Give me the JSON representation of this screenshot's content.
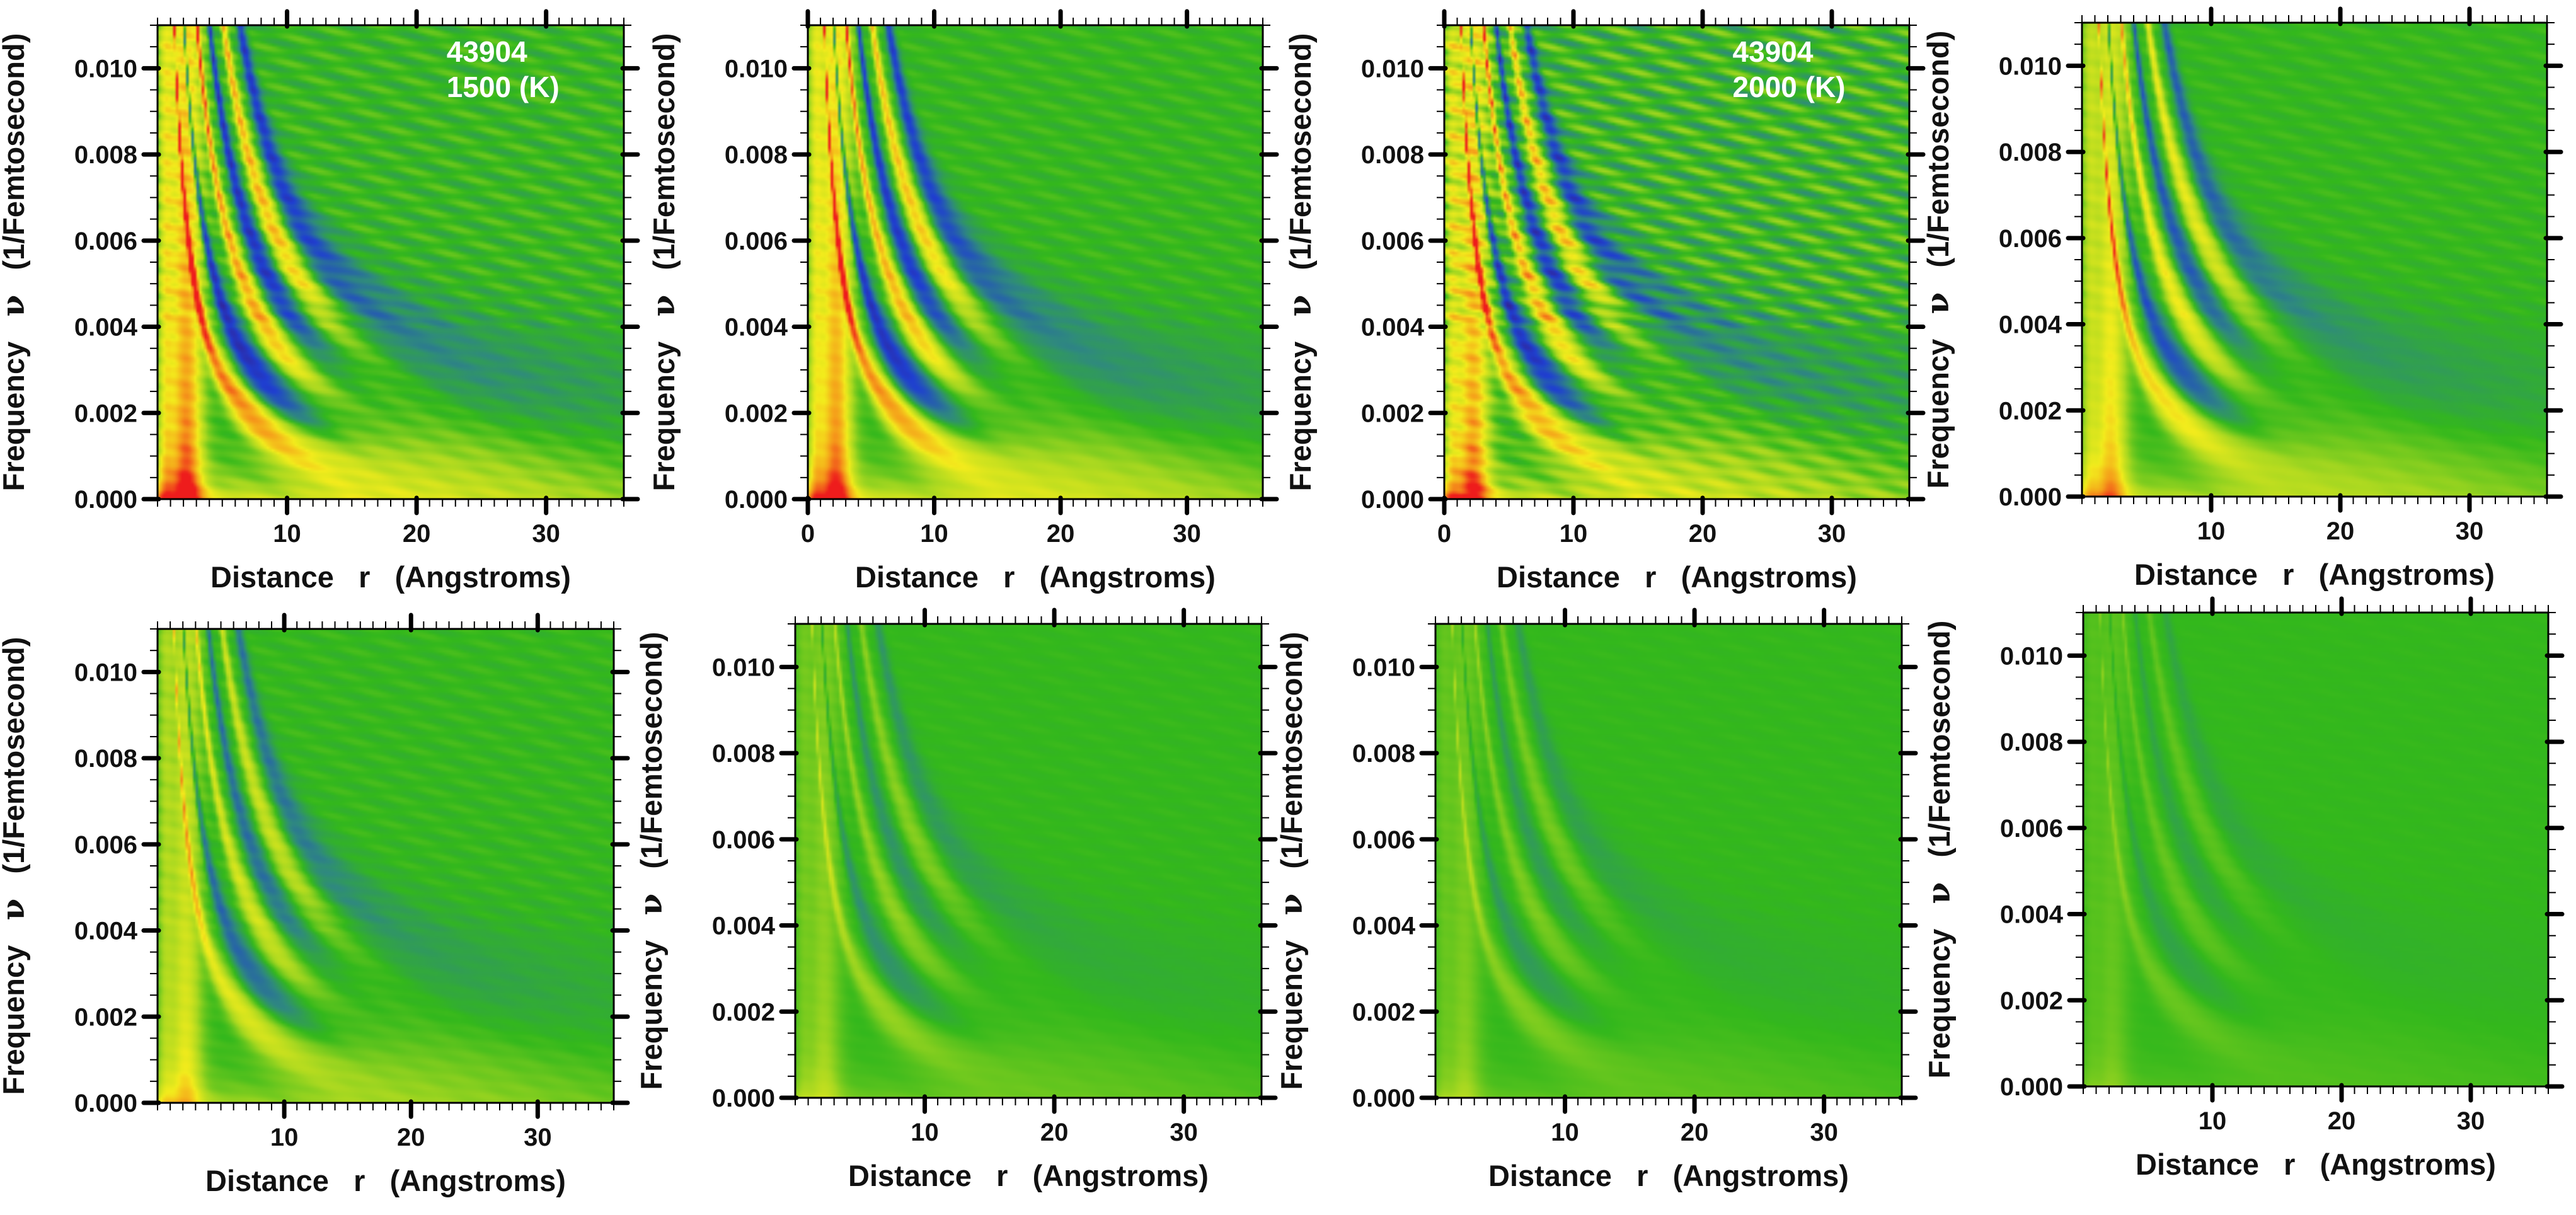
{
  "figure": {
    "description_type": "grid of 8 false-colour frequency-distance contour maps"
  },
  "colormap": {
    "stops": [
      {
        "v": -1.0,
        "color": "#3a1a82"
      },
      {
        "v": -0.6,
        "color": "#1f3fd1"
      },
      {
        "v": -0.25,
        "color": "#2f8a7e"
      },
      {
        "v": 0.0,
        "color": "#33b81c"
      },
      {
        "v": 0.25,
        "color": "#a8d820"
      },
      {
        "v": 0.5,
        "color": "#f3ec1c"
      },
      {
        "v": 0.75,
        "color": "#f59a1a"
      },
      {
        "v": 1.0,
        "color": "#ee1c1c"
      }
    ]
  },
  "chart_data": [
    {
      "id": "p1",
      "type": "heatmap",
      "xlabel": "Distance   r   (Angstroms)",
      "ylabel_prefix": "Frequency",
      "ylabel_symbol": "ν",
      "ylabel_unit": "(1/Femtosecond)",
      "xlim": [
        0,
        36
      ],
      "ylim": [
        0,
        0.011
      ],
      "xticks": [
        10,
        20,
        30
      ],
      "yticks": [
        0.0,
        0.002,
        0.004,
        0.006,
        0.008,
        0.01
      ],
      "ytick_labels": [
        "0.000",
        "0.002",
        "0.004",
        "0.006",
        "0.008",
        "0.010"
      ],
      "annotation": [
        "43904",
        "1500 (K)"
      ],
      "intensity": 1.0,
      "noise": 0.35,
      "colorscale": "value -1 (dark blue/purple) to +1 (red), green = 0",
      "ridges": [
        {
          "sign": 1,
          "coef": 0.0143
        },
        {
          "sign": -1,
          "coef": 0.0225
        },
        {
          "sign": 1,
          "coef": 0.0335
        },
        {
          "sign": -1,
          "coef": 0.044
        },
        {
          "sign": 1,
          "coef": 0.056
        },
        {
          "sign": -1,
          "coef": 0.07
        }
      ]
    },
    {
      "id": "p2",
      "type": "heatmap",
      "xlabel": "Distance   r   (Angstroms)",
      "ylabel_prefix": "Frequency",
      "ylabel_symbol": "ν",
      "ylabel_unit": "(1/Femtosecond)",
      "xlim": [
        0,
        36
      ],
      "ylim": [
        0,
        0.011
      ],
      "xticks": [
        0,
        10,
        20,
        30
      ],
      "yticks": [
        0.0,
        0.002,
        0.004,
        0.006,
        0.008,
        0.01
      ],
      "ytick_labels": [
        "0.000",
        "0.002",
        "0.004",
        "0.006",
        "0.008",
        "0.010"
      ],
      "annotation": null,
      "intensity": 0.95,
      "noise": 0.2,
      "colorscale": "value -1 (dark blue/purple) to +1 (red), green = 0",
      "ridges": [
        {
          "sign": 1,
          "coef": 0.0143
        },
        {
          "sign": -1,
          "coef": 0.0225
        },
        {
          "sign": 1,
          "coef": 0.0335
        },
        {
          "sign": -1,
          "coef": 0.044
        },
        {
          "sign": 1,
          "coef": 0.056
        },
        {
          "sign": -1,
          "coef": 0.07
        }
      ]
    },
    {
      "id": "p3",
      "type": "heatmap",
      "xlabel": "Distance   r   (Angstroms)",
      "ylabel_prefix": "Frequency",
      "ylabel_symbol": "ν",
      "ylabel_unit": "(1/Femtosecond)",
      "xlim": [
        0,
        36
      ],
      "ylim": [
        0,
        0.011
      ],
      "xticks": [
        0,
        10,
        20,
        30
      ],
      "yticks": [
        0.0,
        0.002,
        0.004,
        0.006,
        0.008,
        0.01
      ],
      "ytick_labels": [
        "0.000",
        "0.002",
        "0.004",
        "0.006",
        "0.008",
        "0.010"
      ],
      "annotation": [
        "43904",
        "2000 (K)"
      ],
      "intensity": 0.9,
      "noise": 0.75,
      "colorscale": "value -1 (dark blue/purple) to +1 (red), green = 0",
      "ridges": [
        {
          "sign": 1,
          "coef": 0.0143
        },
        {
          "sign": -1,
          "coef": 0.0225
        },
        {
          "sign": 1,
          "coef": 0.0335
        },
        {
          "sign": -1,
          "coef": 0.044
        },
        {
          "sign": 1,
          "coef": 0.056
        },
        {
          "sign": -1,
          "coef": 0.07
        }
      ]
    },
    {
      "id": "p4",
      "type": "heatmap",
      "xlabel": "Distance   r   (Angstroms)",
      "ylabel_prefix": "Frequency",
      "ylabel_symbol": "ν",
      "ylabel_unit": "(1/Femtosecond)",
      "xlim": [
        0,
        36
      ],
      "ylim": [
        0,
        0.011
      ],
      "xticks": [
        10,
        20,
        30
      ],
      "yticks": [
        0.0,
        0.002,
        0.004,
        0.006,
        0.008,
        0.01
      ],
      "ytick_labels": [
        "0.000",
        "0.002",
        "0.004",
        "0.006",
        "0.008",
        "0.010"
      ],
      "annotation": null,
      "intensity": 0.7,
      "noise": 0.2,
      "colorscale": "value -1 (dark blue/purple) to +1 (red), green = 0",
      "ridges": [
        {
          "sign": 1,
          "coef": 0.0143
        },
        {
          "sign": -1,
          "coef": 0.0225
        },
        {
          "sign": 1,
          "coef": 0.0335
        },
        {
          "sign": -1,
          "coef": 0.044
        },
        {
          "sign": 1,
          "coef": 0.056
        },
        {
          "sign": -1,
          "coef": 0.07
        }
      ]
    },
    {
      "id": "p5",
      "type": "heatmap",
      "xlabel": "Distance   r   (Angstroms)",
      "ylabel_prefix": "Frequency",
      "ylabel_symbol": "ν",
      "ylabel_unit": "(1/Femtosecond)",
      "xlim": [
        0,
        36
      ],
      "ylim": [
        0,
        0.011
      ],
      "xticks": [
        10,
        20,
        30
      ],
      "yticks": [
        0.0,
        0.002,
        0.004,
        0.006,
        0.008,
        0.01
      ],
      "ytick_labels": [
        "0.000",
        "0.002",
        "0.004",
        "0.006",
        "0.008",
        "0.010"
      ],
      "annotation": null,
      "intensity": 0.55,
      "noise": 0.25,
      "colorscale": "value -1 (dark blue/purple) to +1 (red), green = 0",
      "ridges": [
        {
          "sign": 1,
          "coef": 0.0143
        },
        {
          "sign": -1,
          "coef": 0.0225
        },
        {
          "sign": 1,
          "coef": 0.0335
        },
        {
          "sign": -1,
          "coef": 0.044
        },
        {
          "sign": 1,
          "coef": 0.056
        },
        {
          "sign": -1,
          "coef": 0.07
        }
      ]
    },
    {
      "id": "p6",
      "type": "heatmap",
      "xlabel": "Distance   r   (Angstroms)",
      "ylabel_prefix": "Frequency",
      "ylabel_symbol": "ν",
      "ylabel_unit": "(1/Femtosecond)",
      "xlim": [
        0,
        36
      ],
      "ylim": [
        0,
        0.011
      ],
      "xticks": [
        10,
        20,
        30
      ],
      "yticks": [
        0.0,
        0.002,
        0.004,
        0.006,
        0.008,
        0.01
      ],
      "ytick_labels": [
        "0.000",
        "0.002",
        "0.004",
        "0.006",
        "0.008",
        "0.010"
      ],
      "annotation": null,
      "intensity": 0.28,
      "noise": 0.2,
      "colorscale": "value -1 (dark blue/purple) to +1 (red), green = 0",
      "ridges": [
        {
          "sign": 1,
          "coef": 0.0143
        },
        {
          "sign": -1,
          "coef": 0.0225
        },
        {
          "sign": 1,
          "coef": 0.0335
        },
        {
          "sign": -1,
          "coef": 0.044
        },
        {
          "sign": 1,
          "coef": 0.056
        },
        {
          "sign": -1,
          "coef": 0.07
        }
      ]
    },
    {
      "id": "p7",
      "type": "heatmap",
      "xlabel": "Distance   r   (Angstroms)",
      "ylabel_prefix": "Frequency",
      "ylabel_symbol": "ν",
      "ylabel_unit": "(1/Femtosecond)",
      "xlim": [
        0,
        36
      ],
      "ylim": [
        0,
        0.011
      ],
      "xticks": [
        10,
        20,
        30
      ],
      "yticks": [
        0.0,
        0.002,
        0.004,
        0.006,
        0.008,
        0.01
      ],
      "ytick_labels": [
        "0.000",
        "0.002",
        "0.004",
        "0.006",
        "0.008",
        "0.010"
      ],
      "annotation": null,
      "intensity": 0.22,
      "noise": 0.2,
      "colorscale": "value -1 (dark blue/purple) to +1 (red), green = 0",
      "ridges": [
        {
          "sign": 1,
          "coef": 0.0143
        },
        {
          "sign": -1,
          "coef": 0.0225
        },
        {
          "sign": 1,
          "coef": 0.0335
        },
        {
          "sign": -1,
          "coef": 0.044
        },
        {
          "sign": 1,
          "coef": 0.056
        },
        {
          "sign": -1,
          "coef": 0.07
        }
      ]
    },
    {
      "id": "p8",
      "type": "heatmap",
      "xlabel": "Distance   r   (Angstroms)",
      "ylabel_prefix": "Frequency",
      "ylabel_symbol": "ν",
      "ylabel_unit": "(1/Femtosecond)",
      "xlim": [
        0,
        36
      ],
      "ylim": [
        0,
        0.011
      ],
      "xticks": [
        10,
        20,
        30
      ],
      "yticks": [
        0.0,
        0.002,
        0.004,
        0.006,
        0.008,
        0.01
      ],
      "ytick_labels": [
        "0.000",
        "0.002",
        "0.004",
        "0.006",
        "0.008",
        "0.010"
      ],
      "annotation": null,
      "intensity": 0.15,
      "noise": 0.2,
      "colorscale": "value -1 (dark blue/purple) to +1 (red), green = 0",
      "ridges": [
        {
          "sign": 1,
          "coef": 0.0143
        },
        {
          "sign": -1,
          "coef": 0.0225
        },
        {
          "sign": 1,
          "coef": 0.0335
        },
        {
          "sign": -1,
          "coef": 0.044
        },
        {
          "sign": 1,
          "coef": 0.056
        },
        {
          "sign": -1,
          "coef": 0.07
        }
      ]
    }
  ]
}
